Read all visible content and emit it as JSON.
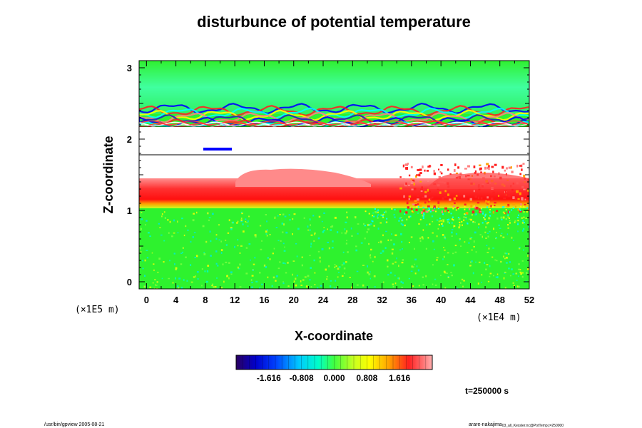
{
  "chart_data": {
    "type": "heatmap",
    "title": "disturbunce of potential temperature",
    "xlabel": "X-coordinate",
    "ylabel": "Z-coordinate",
    "x_scale_label": "(×1E4 m)",
    "y_scale_label": "(×1E5 m)",
    "xlim": [
      -1,
      52
    ],
    "ylim": [
      -0.1,
      3.1
    ],
    "x_ticks": [
      "0",
      "4",
      "8",
      "12",
      "16",
      "20",
      "24",
      "28",
      "32",
      "36",
      "40",
      "44",
      "48",
      "52"
    ],
    "y_ticks": [
      "0",
      "1",
      "2",
      "3"
    ],
    "colorbar": {
      "ticks": [
        "-1.616",
        "-0.808",
        "0.000",
        "0.808",
        "1.616"
      ],
      "range": [
        -2.424,
        2.424
      ]
    },
    "field_summary": [
      {
        "z_range": [
          -0.1,
          1.1
        ],
        "level": 0.0
      },
      {
        "z_range": [
          1.1,
          1.35
        ],
        "level": 1.6
      },
      {
        "z_range": [
          1.35,
          1.75
        ],
        "level": "above range (white)"
      },
      {
        "z_range": [
          1.75,
          2.25
        ],
        "level": "above range (white), oscillating edges"
      },
      {
        "z_range": [
          2.25,
          2.4
        ],
        "level": "mixed -1.6 to 1.6"
      },
      {
        "z_range": [
          2.4,
          3.1
        ],
        "level": 0.1
      }
    ],
    "annotation": "t=250000 s"
  },
  "footer": {
    "left": "/usr/bin/gpview 2005-08-21",
    "right": "arare-nakajima",
    "right_sub": "03_all_Kessler.nc@PotTemp,t=250000"
  },
  "colors": {
    "green_bg": "#2ef22e",
    "red": "#ff2020",
    "light_red": "#ff8080",
    "cyan": "#00ffff",
    "blue": "#0000ff"
  }
}
